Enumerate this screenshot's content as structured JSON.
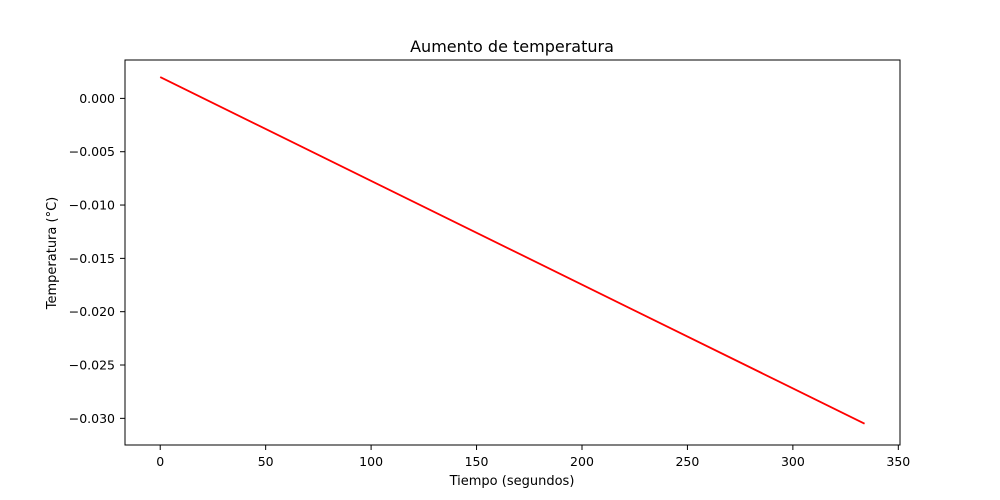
{
  "chart_data": {
    "type": "line",
    "title": "Aumento de temperatura",
    "xlabel": "Tiempo (segundos)",
    "ylabel": "Temperatura (°C)",
    "xlim": [
      -16.7,
      350.8
    ],
    "ylim": [
      -0.0325,
      0.0036
    ],
    "xticks": [
      0,
      50,
      100,
      150,
      200,
      250,
      300,
      350
    ],
    "xtick_labels": [
      "0",
      "50",
      "100",
      "150",
      "200",
      "250",
      "300",
      "350"
    ],
    "yticks": [
      0.0,
      -0.005,
      -0.01,
      -0.015,
      -0.02,
      -0.025,
      -0.03
    ],
    "ytick_labels": [
      "0.000",
      "−0.005",
      "−0.010",
      "−0.015",
      "−0.020",
      "−0.025",
      "−0.030"
    ],
    "grid": false,
    "series": [
      {
        "color": "#ff0000",
        "x": [
          0,
          334
        ],
        "y": [
          0.002,
          -0.0305
        ]
      }
    ]
  }
}
